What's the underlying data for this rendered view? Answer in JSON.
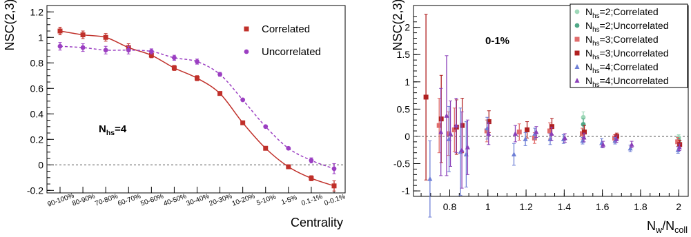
{
  "chart_data": [
    {
      "type": "line",
      "xlabel": "Centrality",
      "ylabel": "NSC(2,3)",
      "ylim": [
        -0.22,
        1.25
      ],
      "yticks": [
        -0.2,
        0,
        0.2,
        0.4,
        0.6,
        0.8,
        1,
        1.2
      ],
      "categories": [
        "90-100%",
        "80-90%",
        "70-80%",
        "60-70%",
        "50-60%",
        "40-50%",
        "30-40%",
        "20-30%",
        "10-20%",
        "5-10%",
        "1-5%",
        "0.1-1%",
        "0-0.1%"
      ],
      "reference_line": 0,
      "annotation": {
        "main": "N",
        "sub": "hs",
        "suffix": "=4"
      },
      "legend": {
        "position": "top-right"
      },
      "series": [
        {
          "name": "Correlated",
          "color": "#c0302a",
          "marker": "square",
          "line": "solid",
          "values": [
            1.05,
            1.02,
            1.0,
            0.92,
            0.86,
            0.76,
            0.68,
            0.56,
            0.33,
            0.13,
            -0.015,
            -0.105,
            -0.165
          ],
          "errors": [
            0.03,
            0.03,
            0.03,
            0.03,
            0.02,
            0.02,
            0.02,
            0.015,
            0.01,
            0.01,
            0.01,
            0.02,
            0.04
          ]
        },
        {
          "name": "Uncorrelated",
          "color": "#9b3fc2",
          "marker": "circle",
          "line": "dashed",
          "values": [
            0.93,
            0.92,
            0.9,
            0.9,
            0.89,
            0.84,
            0.81,
            0.71,
            0.51,
            0.3,
            0.13,
            0.035,
            -0.03
          ],
          "errors": [
            0.03,
            0.03,
            0.03,
            0.03,
            0.02,
            0.02,
            0.02,
            0.015,
            0.01,
            0.01,
            0.01,
            0.02,
            0.04
          ]
        }
      ]
    },
    {
      "type": "scatter",
      "xlabel": {
        "main": "N",
        "sub1": "w",
        "mid": "/N",
        "sub2": "coll"
      },
      "ylabel": "NSC(2,3)",
      "xlim": [
        0.61,
        2.05
      ],
      "ylim": [
        -1.1,
        2.4
      ],
      "xticks": [
        0.8,
        1,
        1.2,
        1.4,
        1.6,
        1.8,
        2
      ],
      "yticks": [
        -1,
        -0.5,
        0,
        0.5,
        1,
        1.5,
        2
      ],
      "reference_line": 0,
      "annotation": "0-1%",
      "legend": {
        "position": "top-right"
      },
      "series": [
        {
          "name": {
            "main": "N",
            "sub": "hs",
            "suffix": "=2;Correlated"
          },
          "color": "#9ed8b8",
          "marker": "circle",
          "points": [
            [
              1.5,
              0.35,
              0.1
            ],
            [
              2.0,
              -0.02,
              0.05
            ]
          ]
        },
        {
          "name": {
            "main": "N",
            "sub": "hs",
            "suffix": "=2;Uncorrelated"
          },
          "color": "#4fa887",
          "marker": "circle",
          "points": [
            [
              1.5,
              0.22,
              0.1
            ],
            [
              2.0,
              -0.08,
              0.05
            ]
          ]
        },
        {
          "name": {
            "main": "N",
            "sub": "hs",
            "suffix": "=3;Correlated"
          },
          "color": "#e06c6c",
          "marker": "square",
          "points": [
            [
              0.75,
              0.2,
              0.5
            ],
            [
              0.8,
              0.05,
              0.4
            ],
            [
              0.83,
              0.12,
              0.4
            ],
            [
              1.0,
              0.1,
              0.2
            ],
            [
              1.17,
              0.08,
              0.15
            ],
            [
              1.25,
              -0.03,
              0.1
            ],
            [
              1.33,
              0.1,
              0.15
            ],
            [
              1.5,
              0.05,
              0.1
            ],
            [
              1.67,
              -0.03,
              0.06
            ],
            [
              2.0,
              -0.1,
              0.08
            ]
          ]
        },
        {
          "name": {
            "main": "N",
            "sub": "hs",
            "suffix": "=3;Uncorrelated"
          },
          "color": "#b02020",
          "marker": "square",
          "points": [
            [
              0.67,
              0.72,
              1.52
            ],
            [
              0.75,
              0.32,
              0.8
            ],
            [
              0.83,
              0.17,
              0.5
            ],
            [
              0.86,
              0.2,
              0.5
            ],
            [
              1.0,
              0.27,
              0.2
            ],
            [
              1.2,
              0.12,
              0.15
            ],
            [
              1.33,
              0.18,
              0.15
            ],
            [
              1.5,
              0.08,
              0.12
            ],
            [
              1.67,
              0.0,
              0.06
            ],
            [
              2.0,
              -0.15,
              0.08
            ]
          ]
        },
        {
          "name": {
            "main": "N",
            "sub": "hs",
            "suffix": "=4;Correlated"
          },
          "color": "#6e7fd6",
          "marker": "triangle",
          "points": [
            [
              0.7,
              -0.78,
              0.7
            ],
            [
              0.8,
              -0.05,
              0.6
            ],
            [
              0.86,
              -0.28,
              0.8
            ],
            [
              0.89,
              -0.33,
              0.6
            ],
            [
              1.0,
              0.15,
              0.2
            ],
            [
              1.14,
              -0.33,
              0.2
            ],
            [
              1.2,
              -0.05,
              0.12
            ],
            [
              1.25,
              0.05,
              0.1
            ],
            [
              1.33,
              -0.05,
              0.1
            ],
            [
              1.4,
              -0.05,
              0.08
            ],
            [
              1.5,
              -0.08,
              0.06
            ],
            [
              1.6,
              -0.12,
              0.08
            ],
            [
              1.67,
              -0.08,
              0.06
            ],
            [
              1.75,
              -0.22,
              0.06
            ],
            [
              2.0,
              -0.25,
              0.06
            ]
          ]
        },
        {
          "name": {
            "main": "N",
            "sub": "hs",
            "suffix": "=4;Uncorrelated"
          },
          "color": "#8a3fb8",
          "marker": "triangle",
          "points": [
            [
              0.75,
              0.08,
              0.8
            ],
            [
              0.78,
              0.38,
              1.1
            ],
            [
              0.8,
              0.05,
              0.6
            ],
            [
              0.83,
              0.2,
              0.5
            ],
            [
              0.86,
              -0.25,
              0.7
            ],
            [
              0.89,
              -0.2,
              0.5
            ],
            [
              1.0,
              0.05,
              0.2
            ],
            [
              1.14,
              0.05,
              0.15
            ],
            [
              1.25,
              0.08,
              0.1
            ],
            [
              1.33,
              0.05,
              0.12
            ],
            [
              1.4,
              -0.03,
              0.08
            ],
            [
              1.5,
              -0.02,
              0.08
            ],
            [
              1.6,
              -0.15,
              0.06
            ],
            [
              1.67,
              -0.05,
              0.06
            ],
            [
              1.75,
              -0.15,
              0.06
            ],
            [
              2.0,
              -0.2,
              0.06
            ]
          ]
        }
      ]
    }
  ]
}
